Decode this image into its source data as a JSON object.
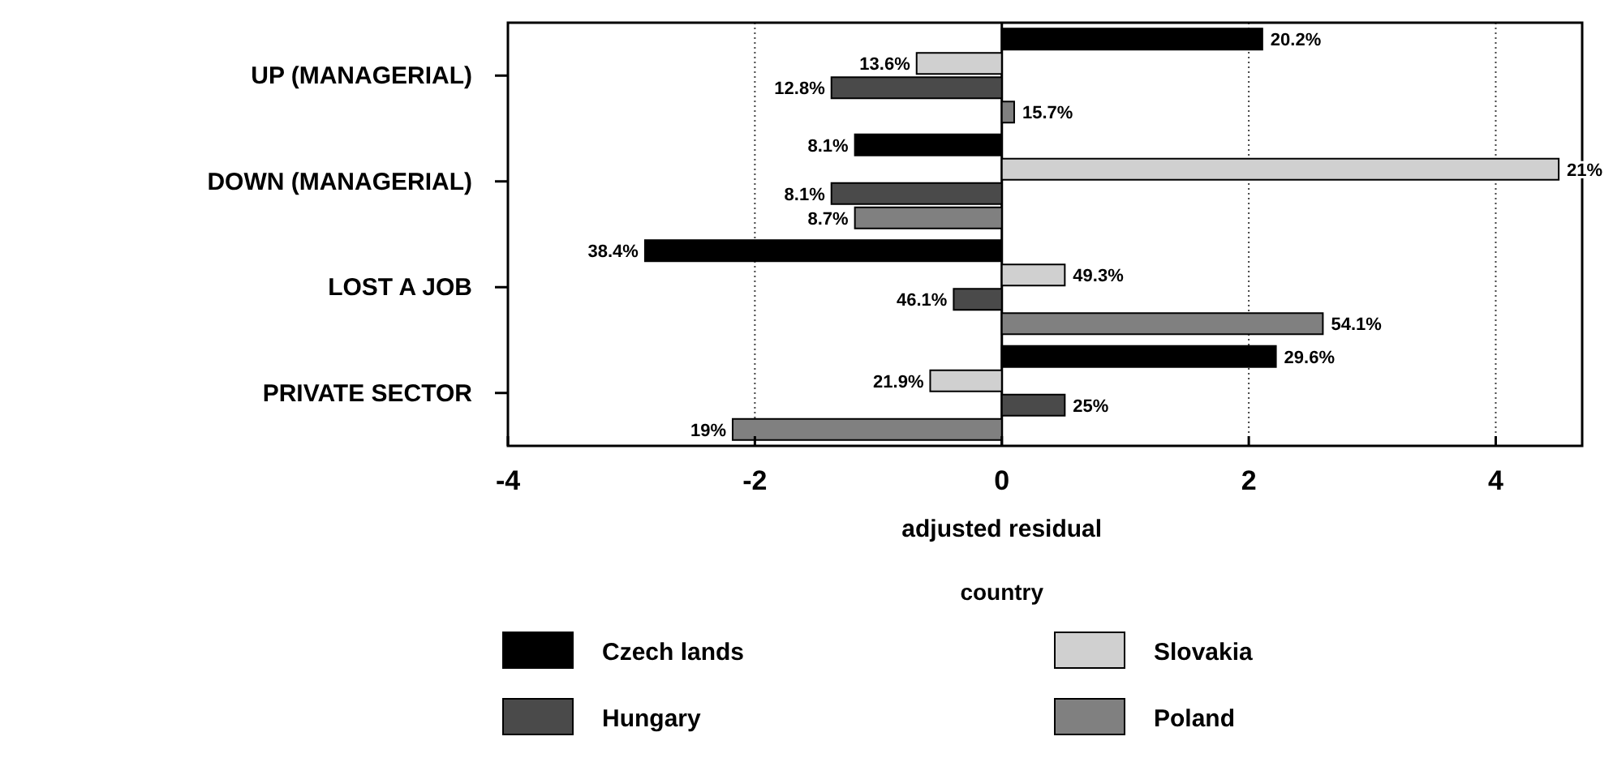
{
  "chart_data": {
    "type": "bar",
    "orientation": "horizontal",
    "xlabel": "adjusted residual",
    "legend_title": "country",
    "categories": [
      "UP (MANAGERIAL)",
      "DOWN (MANAGERIAL)",
      "LOST A JOB",
      "PRIVATE SECTOR"
    ],
    "series": [
      {
        "name": "Czech lands",
        "color": "#000000",
        "values": [
          2.11,
          -1.19,
          -2.89,
          2.22
        ]
      },
      {
        "name": "Slovakia",
        "color": "#d0d0d0",
        "values": [
          -0.69,
          4.51,
          0.51,
          -0.58
        ]
      },
      {
        "name": "Hungary",
        "color": "#4a4a4a",
        "values": [
          -1.38,
          -1.38,
          -0.39,
          0.51
        ]
      },
      {
        "name": "Poland",
        "color": "#808080",
        "values": [
          0.1,
          -1.19,
          2.6,
          -2.18
        ]
      }
    ],
    "annotations": [
      "20.2%",
      "13.6%",
      "12.8%",
      "15.7%",
      "8.1%",
      "21%",
      "8.1%",
      "8.7%",
      "38.4%",
      "49.3%",
      "46.1%",
      "54.1%",
      "29.6%",
      "21.9%",
      "25%",
      "19%"
    ],
    "xlim": [
      -4,
      4.7
    ],
    "xticks": [
      -4,
      -2,
      0,
      2,
      4
    ],
    "grid": "x",
    "legend": "bottom"
  }
}
